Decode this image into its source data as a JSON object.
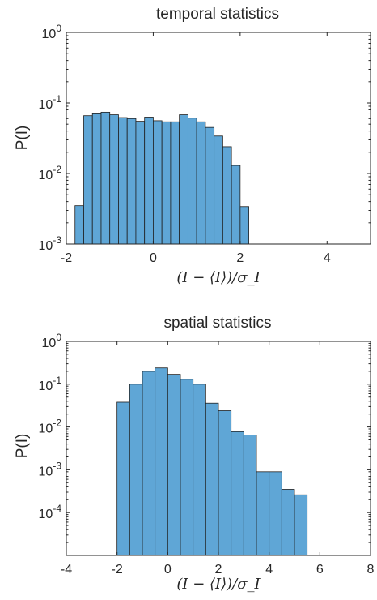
{
  "chart_data": [
    {
      "type": "bar",
      "title": "temporal statistics",
      "xlabel": "(I − ⟨I⟩)/σ_I",
      "ylabel": "P(I)",
      "yscale": "log",
      "xlim": [
        -2,
        5
      ],
      "ylim": [
        0.001,
        1
      ],
      "grid": false,
      "xticks": [
        "-2",
        "0",
        "2",
        "4"
      ],
      "yticks": [
        {
          "base": "10",
          "exp": "-3"
        },
        {
          "base": "10",
          "exp": "-2"
        },
        {
          "base": "10",
          "exp": "-1"
        },
        {
          "base": "10",
          "exp": "0"
        }
      ],
      "bin_width": 0.2,
      "bin_start": -1.8,
      "values": [
        0.0035,
        0.066,
        0.072,
        0.074,
        0.068,
        0.062,
        0.06,
        0.055,
        0.063,
        0.056,
        0.054,
        0.054,
        0.068,
        0.061,
        0.054,
        0.045,
        0.034,
        0.024,
        0.013,
        0.0034
      ]
    },
    {
      "type": "bar",
      "title": "spatial statistics",
      "xlabel": "(I − ⟨I⟩)/σ_I",
      "ylabel": "P(I)",
      "yscale": "log",
      "xlim": [
        -4,
        8
      ],
      "ylim": [
        1e-05,
        1
      ],
      "grid": false,
      "xticks": [
        "-4",
        "-2",
        "0",
        "2",
        "4",
        "6",
        "8"
      ],
      "yticks": [
        {
          "base": "10",
          "exp": "-4"
        },
        {
          "base": "10",
          "exp": "-3"
        },
        {
          "base": "10",
          "exp": "-2"
        },
        {
          "base": "10",
          "exp": "-1"
        },
        {
          "base": "10",
          "exp": "0"
        }
      ],
      "bin_width": 0.5,
      "bin_start": -2.0,
      "values": [
        0.038,
        0.1,
        0.2,
        0.24,
        0.17,
        0.13,
        0.1,
        0.036,
        0.024,
        0.0078,
        0.0065,
        0.0009,
        0.0009,
        0.00035,
        0.00026
      ]
    }
  ]
}
